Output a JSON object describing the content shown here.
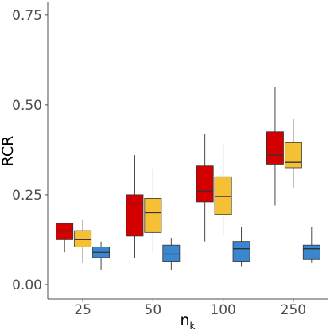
{
  "chart_data": {
    "type": "boxplot",
    "title": "",
    "xlabel": {
      "main": "n",
      "sub": "k"
    },
    "ylabel": "RCR",
    "ylim": [
      -0.04,
      0.785
    ],
    "yticks": [
      0.0,
      0.25,
      0.5,
      0.75
    ],
    "ytick_labels": [
      "0.00",
      "0.25",
      "0.50",
      "0.75"
    ],
    "categories": [
      "25",
      "50",
      "100",
      "250"
    ],
    "grid": false,
    "legend": "none",
    "series": [
      {
        "color": "#d40000",
        "boxes": [
          {
            "whislo": 0.09,
            "q1": 0.125,
            "med": 0.15,
            "q3": 0.17,
            "whishi": 0.17
          },
          {
            "whislo": 0.075,
            "q1": 0.135,
            "med": 0.225,
            "q3": 0.25,
            "whishi": 0.36
          },
          {
            "whislo": 0.12,
            "q1": 0.23,
            "med": 0.26,
            "q3": 0.33,
            "whishi": 0.42
          },
          {
            "whislo": 0.22,
            "q1": 0.335,
            "med": 0.36,
            "q3": 0.425,
            "whishi": 0.55
          }
        ]
      },
      {
        "color": "#f5c033",
        "boxes": [
          {
            "whislo": 0.06,
            "q1": 0.105,
            "med": 0.125,
            "q3": 0.15,
            "whishi": 0.18
          },
          {
            "whislo": 0.09,
            "q1": 0.145,
            "med": 0.2,
            "q3": 0.24,
            "whishi": 0.32
          },
          {
            "whislo": 0.14,
            "q1": 0.195,
            "med": 0.245,
            "q3": 0.3,
            "whishi": 0.39
          },
          {
            "whislo": 0.27,
            "q1": 0.325,
            "med": 0.34,
            "q3": 0.395,
            "whishi": 0.46
          }
        ]
      },
      {
        "color": "#3c85cf",
        "boxes": [
          {
            "whislo": 0.04,
            "q1": 0.075,
            "med": 0.09,
            "q3": 0.105,
            "whishi": 0.12
          },
          {
            "whislo": 0.04,
            "q1": 0.065,
            "med": 0.085,
            "q3": 0.11,
            "whishi": 0.13
          },
          {
            "whislo": 0.05,
            "q1": 0.065,
            "med": 0.1,
            "q3": 0.12,
            "whishi": 0.16
          },
          {
            "whislo": 0.06,
            "q1": 0.07,
            "med": 0.1,
            "q3": 0.11,
            "whishi": 0.16
          }
        ]
      }
    ]
  }
}
